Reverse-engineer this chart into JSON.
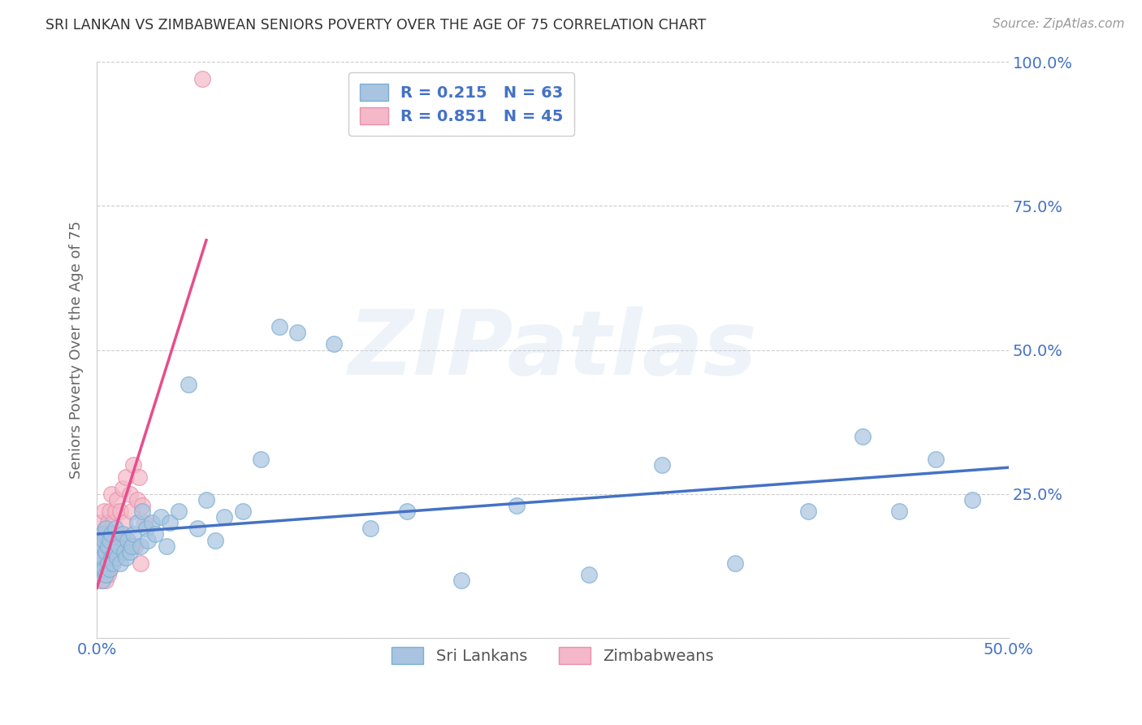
{
  "title": "SRI LANKAN VS ZIMBABWEAN SENIORS POVERTY OVER THE AGE OF 75 CORRELATION CHART",
  "source": "Source: ZipAtlas.com",
  "ylabel": "Seniors Poverty Over the Age of 75",
  "watermark": "ZIPatlas",
  "xlim": [
    0.0,
    0.5
  ],
  "ylim": [
    0.0,
    1.0
  ],
  "xticks": [
    0.0,
    0.1,
    0.2,
    0.3,
    0.4,
    0.5
  ],
  "xticklabels": [
    "0.0%",
    "",
    "",
    "",
    "",
    "50.0%"
  ],
  "yticks": [
    0.0,
    0.25,
    0.5,
    0.75,
    1.0
  ],
  "yticklabels_right": [
    "",
    "25.0%",
    "50.0%",
    "75.0%",
    "100.0%"
  ],
  "sri_lankans_color": "#a8c4e0",
  "sri_lankans_edge_color": "#7aafd4",
  "sri_lankans_line_color": "#4472c4",
  "zimbabweans_color": "#f4b8c8",
  "zimbabweans_edge_color": "#e890aa",
  "zimbabweans_line_color": "#e84c8b",
  "R_sri": 0.215,
  "N_sri": 63,
  "R_zim": 0.851,
  "N_zim": 45,
  "legend_label_sri": "Sri Lankans",
  "legend_label_zim": "Zimbabweans",
  "background_color": "#ffffff",
  "grid_color": "#cccccc",
  "title_color": "#333333",
  "axis_label_color": "#666666",
  "tick_color": "#4472c4",
  "sri_x": [
    0.001,
    0.002,
    0.002,
    0.003,
    0.003,
    0.003,
    0.004,
    0.004,
    0.005,
    0.005,
    0.005,
    0.006,
    0.006,
    0.007,
    0.007,
    0.008,
    0.008,
    0.009,
    0.01,
    0.01,
    0.011,
    0.012,
    0.013,
    0.014,
    0.015,
    0.016,
    0.017,
    0.018,
    0.019,
    0.02,
    0.022,
    0.024,
    0.025,
    0.027,
    0.028,
    0.03,
    0.032,
    0.035,
    0.038,
    0.04,
    0.045,
    0.05,
    0.055,
    0.06,
    0.065,
    0.07,
    0.08,
    0.09,
    0.1,
    0.11,
    0.13,
    0.15,
    0.17,
    0.2,
    0.23,
    0.27,
    0.31,
    0.35,
    0.39,
    0.42,
    0.44,
    0.46,
    0.48
  ],
  "sri_y": [
    0.14,
    0.12,
    0.16,
    0.1,
    0.14,
    0.18,
    0.12,
    0.17,
    0.11,
    0.15,
    0.19,
    0.13,
    0.16,
    0.12,
    0.17,
    0.14,
    0.18,
    0.13,
    0.15,
    0.19,
    0.14,
    0.16,
    0.13,
    0.18,
    0.15,
    0.14,
    0.17,
    0.15,
    0.16,
    0.18,
    0.2,
    0.16,
    0.22,
    0.19,
    0.17,
    0.2,
    0.18,
    0.21,
    0.16,
    0.2,
    0.22,
    0.44,
    0.19,
    0.24,
    0.17,
    0.21,
    0.22,
    0.31,
    0.54,
    0.53,
    0.51,
    0.19,
    0.22,
    0.1,
    0.23,
    0.11,
    0.3,
    0.13,
    0.22,
    0.35,
    0.22,
    0.31,
    0.24
  ],
  "zim_x": [
    0.001,
    0.001,
    0.002,
    0.002,
    0.002,
    0.003,
    0.003,
    0.003,
    0.004,
    0.004,
    0.004,
    0.005,
    0.005,
    0.005,
    0.006,
    0.006,
    0.006,
    0.007,
    0.007,
    0.007,
    0.008,
    0.008,
    0.008,
    0.009,
    0.009,
    0.01,
    0.01,
    0.011,
    0.011,
    0.012,
    0.013,
    0.014,
    0.015,
    0.016,
    0.017,
    0.018,
    0.019,
    0.02,
    0.021,
    0.022,
    0.023,
    0.024,
    0.025,
    0.026,
    0.058
  ],
  "zim_y": [
    0.12,
    0.18,
    0.1,
    0.15,
    0.2,
    0.11,
    0.14,
    0.18,
    0.12,
    0.17,
    0.22,
    0.1,
    0.15,
    0.19,
    0.11,
    0.14,
    0.2,
    0.12,
    0.17,
    0.22,
    0.13,
    0.18,
    0.25,
    0.14,
    0.2,
    0.15,
    0.22,
    0.16,
    0.24,
    0.18,
    0.22,
    0.26,
    0.2,
    0.28,
    0.17,
    0.25,
    0.22,
    0.3,
    0.16,
    0.24,
    0.28,
    0.13,
    0.23,
    0.2,
    0.97
  ],
  "zim_line_x": [
    0.0,
    0.06
  ],
  "sri_line_x": [
    0.0,
    0.5
  ]
}
